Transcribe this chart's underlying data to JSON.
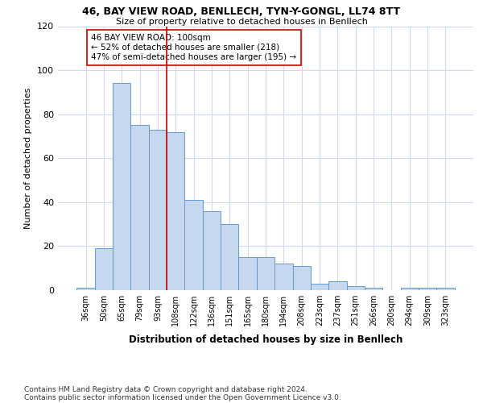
{
  "title1": "46, BAY VIEW ROAD, BENLLECH, TYN-Y-GONGL, LL74 8TT",
  "title2": "Size of property relative to detached houses in Benllech",
  "xlabel": "Distribution of detached houses by size in Benllech",
  "ylabel": "Number of detached properties",
  "categories": [
    "36sqm",
    "50sqm",
    "65sqm",
    "79sqm",
    "93sqm",
    "108sqm",
    "122sqm",
    "136sqm",
    "151sqm",
    "165sqm",
    "180sqm",
    "194sqm",
    "208sqm",
    "223sqm",
    "237sqm",
    "251sqm",
    "266sqm",
    "280sqm",
    "294sqm",
    "309sqm",
    "323sqm"
  ],
  "values": [
    1,
    19,
    94,
    75,
    73,
    72,
    41,
    36,
    30,
    15,
    15,
    12,
    11,
    3,
    4,
    2,
    1,
    0,
    1,
    1,
    1
  ],
  "bar_color": "#c5d8f0",
  "bar_edge_color": "#6699cc",
  "vline_x_index": 5,
  "vline_color": "#cc0000",
  "annotation_text": "46 BAY VIEW ROAD: 100sqm\n← 52% of detached houses are smaller (218)\n47% of semi-detached houses are larger (195) →",
  "annotation_box_color": "#ffffff",
  "annotation_box_edge": "#cc0000",
  "ylim": [
    0,
    120
  ],
  "yticks": [
    0,
    20,
    40,
    60,
    80,
    100,
    120
  ],
  "footer1": "Contains HM Land Registry data © Crown copyright and database right 2024.",
  "footer2": "Contains public sector information licensed under the Open Government Licence v3.0.",
  "bg_color": "#ffffff",
  "grid_color": "#d0d8f0"
}
